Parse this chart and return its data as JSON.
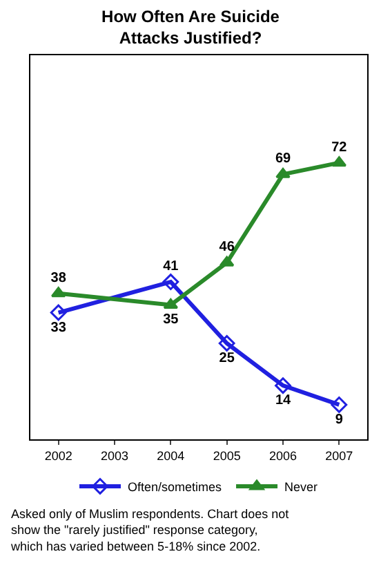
{
  "chart_data": {
    "type": "line",
    "title": "How Often Are Suicide Attacks Justified?",
    "categories": [
      "2002",
      "2003",
      "2004",
      "2005",
      "2006",
      "2007"
    ],
    "series": [
      {
        "name": "Often/sometimes",
        "color": "#2020e0",
        "marker": "diamond",
        "values": [
          33,
          null,
          41,
          25,
          14,
          9
        ]
      },
      {
        "name": "Never",
        "color": "#2a8a2a",
        "marker": "triangle",
        "values": [
          38,
          null,
          35,
          46,
          69,
          72
        ]
      }
    ],
    "ylim": [
      0,
      100
    ],
    "data_labels": true,
    "legend": "bottom",
    "grid": false,
    "tick_labels": "x",
    "annotations": [
      "Asked only of Muslim respondents. Chart does not show the \"rarely justified\" response category, which has varied between 5-18% since 2002."
    ]
  }
}
